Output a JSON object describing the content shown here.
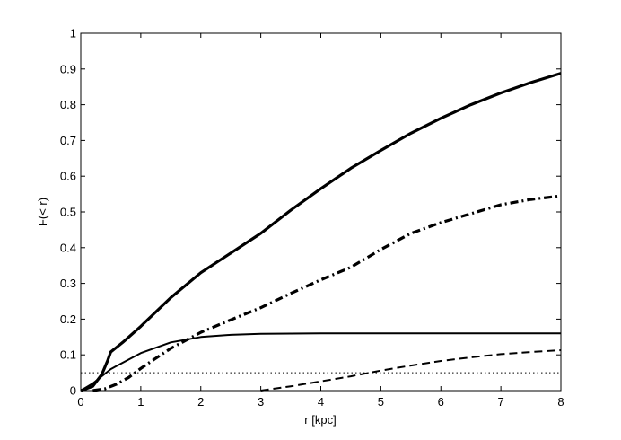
{
  "chart_data": {
    "type": "line",
    "title": "",
    "xlabel": "r [kpc]",
    "ylabel": "F(< r)",
    "xlim": [
      0,
      8
    ],
    "ylim": [
      0,
      1
    ],
    "xticks": [
      0,
      1,
      2,
      3,
      4,
      5,
      6,
      7,
      8
    ],
    "xtick_labels": [
      "0",
      "1",
      "2",
      "3",
      "4",
      "5",
      "6",
      "7",
      "8"
    ],
    "yticks": [
      0,
      0.1,
      0.2,
      0.3,
      0.4,
      0.5,
      0.6,
      0.7,
      0.8,
      0.9,
      1
    ],
    "ytick_labels": [
      "0",
      "0.1",
      "0.2",
      "0.3",
      "0.4",
      "0.5",
      "0.6",
      "0.7",
      "0.8",
      "0.9",
      "1"
    ],
    "grid": false,
    "legend": "none",
    "series": [
      {
        "style": "thick-solid",
        "color": "#000000",
        "points": [
          [
            0,
            0
          ],
          [
            0.2,
            0.012
          ],
          [
            0.35,
            0.045
          ],
          [
            0.45,
            0.085
          ],
          [
            0.5,
            0.108
          ],
          [
            0.7,
            0.135
          ],
          [
            1.0,
            0.18
          ],
          [
            1.5,
            0.26
          ],
          [
            2.0,
            0.33
          ],
          [
            2.5,
            0.385
          ],
          [
            3.0,
            0.44
          ],
          [
            3.5,
            0.505
          ],
          [
            4.0,
            0.565
          ],
          [
            4.5,
            0.622
          ],
          [
            5.0,
            0.672
          ],
          [
            5.5,
            0.72
          ],
          [
            6.0,
            0.762
          ],
          [
            6.5,
            0.8
          ],
          [
            7.0,
            0.833
          ],
          [
            7.5,
            0.862
          ],
          [
            8.0,
            0.888
          ]
        ]
      },
      {
        "style": "thick-dashdot",
        "color": "#000000",
        "points": [
          [
            0.2,
            0
          ],
          [
            0.4,
            0.005
          ],
          [
            0.6,
            0.018
          ],
          [
            0.8,
            0.037
          ],
          [
            1.0,
            0.062
          ],
          [
            1.2,
            0.085
          ],
          [
            1.5,
            0.118
          ],
          [
            2.0,
            0.163
          ],
          [
            2.5,
            0.198
          ],
          [
            3.0,
            0.232
          ],
          [
            3.5,
            0.272
          ],
          [
            4.0,
            0.31
          ],
          [
            4.5,
            0.345
          ],
          [
            5.0,
            0.395
          ],
          [
            5.5,
            0.44
          ],
          [
            6.0,
            0.47
          ],
          [
            6.5,
            0.495
          ],
          [
            7.0,
            0.52
          ],
          [
            7.5,
            0.535
          ],
          [
            8.0,
            0.545
          ]
        ]
      },
      {
        "style": "solid",
        "color": "#000000",
        "points": [
          [
            0,
            0
          ],
          [
            0.2,
            0.02
          ],
          [
            0.5,
            0.06
          ],
          [
            1.0,
            0.105
          ],
          [
            1.5,
            0.135
          ],
          [
            2.0,
            0.15
          ],
          [
            2.5,
            0.156
          ],
          [
            3.0,
            0.159
          ],
          [
            4.0,
            0.16
          ],
          [
            5.0,
            0.16
          ],
          [
            6.0,
            0.16
          ],
          [
            7.0,
            0.16
          ],
          [
            8.0,
            0.16
          ]
        ]
      },
      {
        "style": "dashed",
        "color": "#000000",
        "points": [
          [
            3.0,
            0
          ],
          [
            3.5,
            0.012
          ],
          [
            4.0,
            0.026
          ],
          [
            4.5,
            0.04
          ],
          [
            5.0,
            0.056
          ],
          [
            5.5,
            0.07
          ],
          [
            6.0,
            0.083
          ],
          [
            6.5,
            0.093
          ],
          [
            7.0,
            0.102
          ],
          [
            7.5,
            0.108
          ],
          [
            8.0,
            0.113
          ]
        ]
      },
      {
        "style": "dotted",
        "color": "#000000",
        "points": [
          [
            0,
            0.05
          ],
          [
            8.0,
            0.05
          ]
        ]
      }
    ]
  }
}
